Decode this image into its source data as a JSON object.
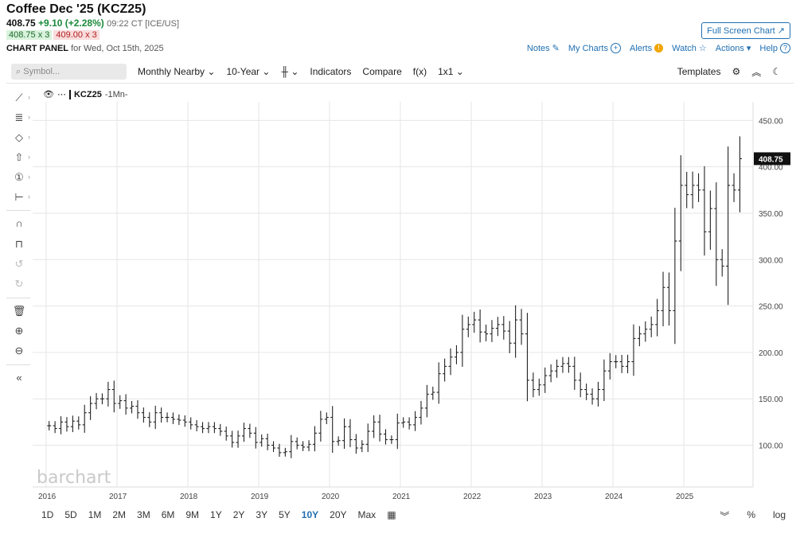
{
  "header": {
    "title": "Coffee Dec '25 (KCZ25)",
    "last": "408.75",
    "change": "+9.10 (+2.28%)",
    "time": "09:22 CT [ICE/US]",
    "bid": "408.75 x 3",
    "ask": "409.00 x 3",
    "panel_label": "CHART PANEL",
    "panel_date": "for Wed, Oct 15th, 2025",
    "fullscreen": "Full Screen Chart"
  },
  "links": {
    "notes": "Notes",
    "mycharts": "My Charts",
    "alerts": "Alerts",
    "watch": "Watch",
    "actions": "Actions",
    "help": "Help"
  },
  "toolbar": {
    "search_placeholder": "Symbol...",
    "aggregation": "Monthly Nearby",
    "range": "10-Year",
    "indicators": "Indicators",
    "compare": "Compare",
    "fx": "f(x)",
    "layout": "1x1",
    "templates": "Templates"
  },
  "legend": {
    "symbol": "KCZ25",
    "period": "-1Mn-"
  },
  "watermark": "barchart",
  "periods": [
    "1D",
    "5D",
    "1M",
    "2M",
    "3M",
    "6M",
    "9M",
    "1Y",
    "2Y",
    "3Y",
    "5Y",
    "10Y",
    "20Y",
    "Max"
  ],
  "active_period": "10Y",
  "bottom_right": {
    "percent": "%",
    "log": "log"
  },
  "chart_data": {
    "type": "ohlc",
    "title": "Coffee Dec '25 (KCZ25)",
    "interval": "monthly",
    "ylim": [
      55,
      470
    ],
    "yticks": [
      "100.00",
      "150.00",
      "200.00",
      "250.00",
      "300.00",
      "350.00",
      "400.00",
      "450.00"
    ],
    "xticks": [
      "2016",
      "2017",
      "2018",
      "2019",
      "2020",
      "2021",
      "2022",
      "2023",
      "2024",
      "2025"
    ],
    "last_price": "408.75",
    "grid": true,
    "years": [
      {
        "year": 2016,
        "close": [
          121,
          118,
          125,
          120,
          126,
          122,
          135,
          145,
          150,
          150,
          160,
          145
        ]
      },
      {
        "year": 2017,
        "close": [
          148,
          140,
          142,
          135,
          130,
          125,
          135,
          130,
          130,
          128,
          127,
          125
        ]
      },
      {
        "year": 2018,
        "close": [
          122,
          120,
          118,
          120,
          118,
          115,
          110,
          103,
          110,
          118,
          113,
          103
        ]
      },
      {
        "year": 2019,
        "close": [
          107,
          100,
          97,
          92,
          93,
          104,
          100,
          98,
          101,
          113,
          128,
          130
        ]
      },
      {
        "year": 2020,
        "close": [
          104,
          105,
          120,
          106,
          97,
          101,
          115,
          125,
          112,
          106,
          106,
          124
        ]
      },
      {
        "year": 2021,
        "close": [
          125,
          122,
          130,
          140,
          155,
          157,
          177,
          185,
          195,
          200,
          225,
          230
        ]
      },
      {
        "year": 2022,
        "close": [
          235,
          222,
          220,
          226,
          230,
          223,
          210,
          235,
          220,
          170,
          160,
          165
        ]
      },
      {
        "year": 2023,
        "close": [
          175,
          180,
          185,
          188,
          185,
          170,
          160,
          155,
          150,
          160,
          180,
          190
        ]
      },
      {
        "year": 2024,
        "close": [
          190,
          185,
          190,
          215,
          220,
          225,
          230,
          245,
          270,
          245,
          320,
          380
        ]
      },
      {
        "year": 2025,
        "close": [
          370,
          380,
          375,
          330,
          355,
          300,
          293,
          380,
          375,
          408.75
        ]
      }
    ]
  }
}
